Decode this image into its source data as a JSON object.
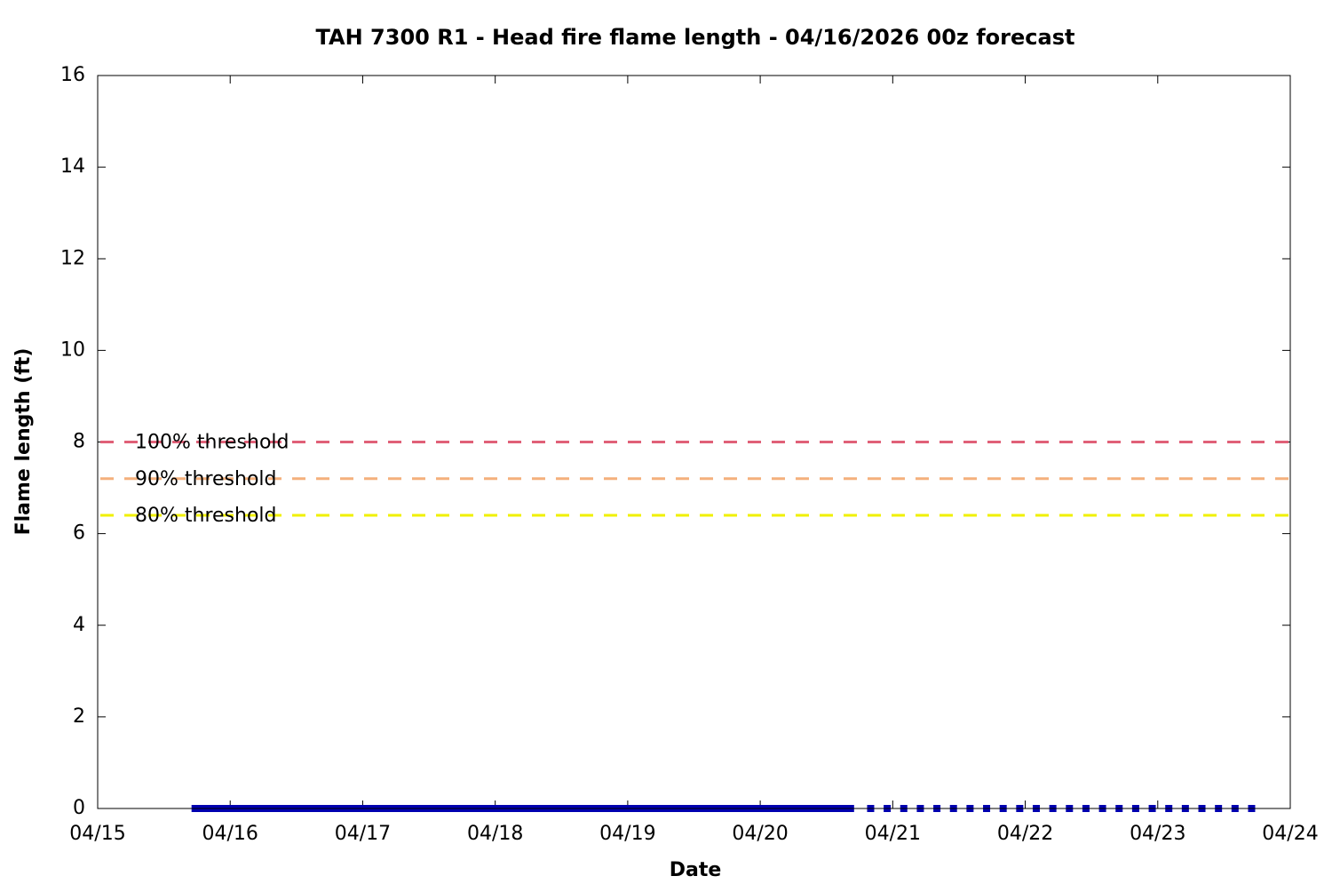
{
  "chart_data": {
    "type": "line",
    "title": "TAH 7300 R1 - Head fire flame length - 04/16/2026 00z forecast",
    "x_label": "Date",
    "y_label": "Flame length (ft)",
    "xlim": [
      0,
      216
    ],
    "xticks": [
      {
        "value": 0,
        "label": "04/15"
      },
      {
        "value": 24,
        "label": "04/16"
      },
      {
        "value": 48,
        "label": "04/17"
      },
      {
        "value": 72,
        "label": "04/18"
      },
      {
        "value": 96,
        "label": "04/19"
      },
      {
        "value": 120,
        "label": "04/20"
      },
      {
        "value": 144,
        "label": "04/21"
      },
      {
        "value": 168,
        "label": "04/22"
      },
      {
        "value": 192,
        "label": "04/23"
      },
      {
        "value": 216,
        "label": "04/24"
      }
    ],
    "ylim": [
      0,
      16
    ],
    "yticks": [
      0,
      2,
      4,
      6,
      8,
      10,
      12,
      14,
      16
    ],
    "series": [
      {
        "color": "#0000b0",
        "style": "solid",
        "x": [
          17,
          18,
          19,
          20,
          21,
          22,
          23,
          24,
          25,
          26,
          27,
          28,
          29,
          30,
          31,
          32,
          33,
          34,
          35,
          36,
          37,
          38,
          39,
          40,
          41,
          42,
          43,
          44,
          45,
          46,
          47,
          48,
          49,
          50,
          51,
          52,
          53,
          54,
          55,
          56,
          57,
          58,
          59,
          60,
          61,
          62,
          63,
          64,
          65,
          66,
          67,
          68,
          69,
          70,
          71,
          72,
          73,
          74,
          75,
          76,
          77,
          78,
          79,
          80,
          81,
          82,
          83,
          84,
          85,
          86,
          87,
          88,
          89,
          90,
          91,
          92,
          93,
          94,
          95,
          96,
          97,
          98,
          99,
          100,
          101,
          102,
          103,
          104,
          105,
          106,
          107,
          108,
          109,
          110,
          111,
          112,
          113,
          114,
          115,
          116,
          117,
          118,
          119,
          120,
          121,
          122,
          123,
          124,
          125,
          126,
          127,
          128,
          129,
          130,
          131,
          132,
          133,
          134,
          135,
          136,
          137
        ],
        "values": [
          0,
          0,
          0,
          0,
          0,
          0,
          0,
          0,
          0,
          0,
          0,
          0,
          0,
          0,
          0,
          0,
          0,
          0,
          0,
          0,
          0,
          0,
          0,
          0,
          0,
          0,
          0,
          0,
          0,
          0,
          0,
          0,
          0,
          0,
          0,
          0,
          0,
          0,
          0,
          0,
          0,
          0,
          0,
          0,
          0,
          0,
          0,
          0,
          0,
          0,
          0,
          0,
          0,
          0,
          0,
          0,
          0,
          0,
          0,
          0,
          0,
          0,
          0,
          0,
          0,
          0,
          0,
          0,
          0,
          0,
          0,
          0,
          0,
          0,
          0,
          0,
          0,
          0,
          0,
          0,
          0,
          0,
          0,
          0,
          0,
          0,
          0,
          0,
          0,
          0,
          0,
          0,
          0,
          0,
          0,
          0,
          0,
          0,
          0,
          0,
          0,
          0,
          0,
          0,
          0,
          0,
          0,
          0,
          0,
          0,
          0,
          0,
          0,
          0,
          0,
          0,
          0,
          0,
          0,
          0,
          0
        ]
      },
      {
        "color": "#0000b0",
        "style": "dotted",
        "x": [
          140,
          143,
          146,
          149,
          152,
          155,
          158,
          161,
          164,
          167,
          170,
          173,
          176,
          179,
          182,
          185,
          188,
          191,
          194,
          197,
          200,
          203,
          206,
          209
        ],
        "values": [
          0,
          0,
          0,
          0,
          0,
          0,
          0,
          0,
          0,
          0,
          0,
          0,
          0,
          0,
          0,
          0,
          0,
          0,
          0,
          0,
          0,
          0,
          0,
          0
        ]
      }
    ],
    "thresholds": [
      {
        "label": "100% threshold",
        "value": 8,
        "color": "#e06078"
      },
      {
        "label": "90% threshold",
        "value": 7.2,
        "color": "#f4b07c"
      },
      {
        "label": "80% threshold",
        "value": 6.4,
        "color": "#f0f000"
      }
    ]
  }
}
